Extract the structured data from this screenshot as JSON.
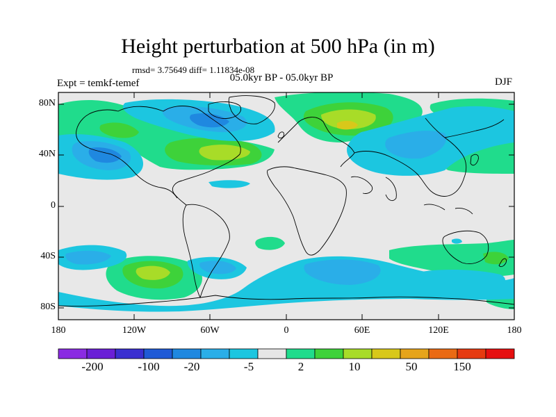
{
  "title": "Height perturbation at 500 hPa (in m)",
  "stats": "rmsd= 3.75649 diff= 1.11834e-08",
  "experiment": "Expt = temkf-temef",
  "period": "05.0kyr BP - 05.0kyr BP",
  "season": "DJF",
  "axes": {
    "y_ticks": [
      "80N",
      "40N",
      "0",
      "40S",
      "80S"
    ],
    "x_ticks": [
      "180",
      "120W",
      "60W",
      "0",
      "60E",
      "120E",
      "180"
    ]
  },
  "colorbar": {
    "labels": [
      "-200",
      "-100",
      "-20",
      "-5",
      "2",
      "10",
      "50",
      "150"
    ],
    "colors": [
      "#8a2be2",
      "#6a1fd6",
      "#3a2fd0",
      "#1f5ad6",
      "#1f88e0",
      "#2aaee8",
      "#1cc6e0",
      "#e6e6e6",
      "#20dc8c",
      "#3ed23a",
      "#a8dc28",
      "#d8c81a",
      "#e6a41a",
      "#ea6a14",
      "#e63a10",
      "#e60f10"
    ]
  }
}
